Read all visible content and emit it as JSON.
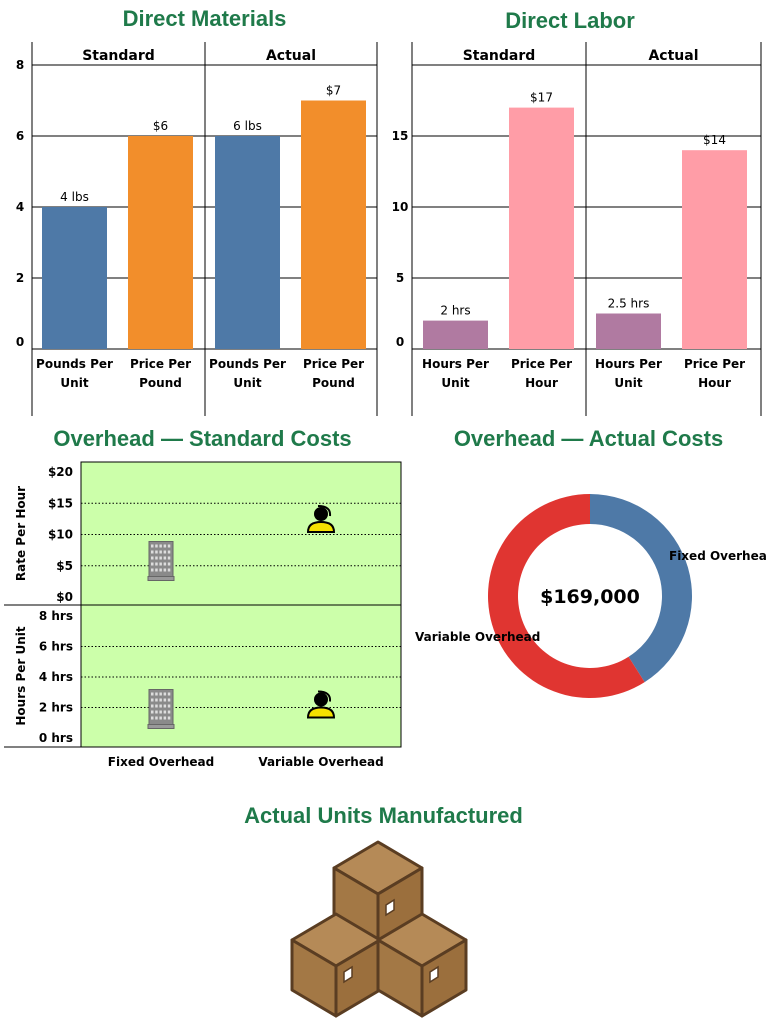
{
  "titles": {
    "direct_materials": "Direct Materials",
    "direct_labor": "Direct Labor",
    "overhead_standard": "Overhead — Standard Costs",
    "overhead_actual": "Overhead — Actual Costs",
    "units": "Actual Units Manufactured"
  },
  "chart_data": [
    {
      "type": "bar",
      "title": "Direct Materials",
      "panels": [
        "Standard",
        "Actual"
      ],
      "categories": [
        "Pounds Per Unit",
        "Price Per Pound",
        "Pounds Per Unit",
        "Price Per Pound"
      ],
      "panel_of_bar": [
        0,
        0,
        1,
        1
      ],
      "values": [
        4,
        6,
        6,
        7
      ],
      "data_labels": [
        "4 lbs",
        "$6",
        "6 lbs",
        "$7"
      ],
      "colors": [
        "#4e79a7",
        "#f28e2b",
        "#4e79a7",
        "#f28e2b"
      ],
      "yticks": [
        "0",
        "2",
        "4",
        "6",
        "8"
      ],
      "ylim": [
        0,
        8
      ],
      "grid": true
    },
    {
      "type": "bar",
      "title": "Direct Labor",
      "panels": [
        "Standard",
        "Actual"
      ],
      "categories": [
        "Hours Per Unit",
        "Price Per Hour",
        "Hours Per Unit",
        "Price Per Hour"
      ],
      "panel_of_bar": [
        0,
        0,
        1,
        1
      ],
      "values": [
        2,
        17,
        2.5,
        14
      ],
      "data_labels": [
        "2 hrs",
        "$17",
        "2.5 hrs",
        "$14"
      ],
      "colors": [
        "#b07aa1",
        "#ff9da7",
        "#b07aa1",
        "#ff9da7"
      ],
      "yticks": [
        "0",
        "5",
        "10",
        "15"
      ],
      "ylim": [
        0,
        20
      ],
      "grid": true
    },
    {
      "type": "scatter",
      "title": "Overhead — Standard Costs",
      "categories": [
        "Fixed Overhead",
        "Variable Overhead"
      ],
      "markers": [
        "building-icon",
        "worker-icon"
      ],
      "background": "#ccffaa",
      "rows": [
        {
          "ylabel": "Rate Per Hour",
          "yticks": [
            "$0",
            "$5",
            "$10",
            "$15",
            "$20"
          ],
          "ylim": [
            0,
            20
          ],
          "values": [
            6,
            12
          ]
        },
        {
          "ylabel": "Hours Per Unit",
          "yticks": [
            "0 hrs",
            "2 hrs",
            "4 hrs",
            "6 hrs",
            "8 hrs"
          ],
          "ylim": [
            0,
            8
          ],
          "values": [
            2,
            2
          ]
        }
      ]
    },
    {
      "type": "pie",
      "title": "Overhead — Actual Costs",
      "center_label": "$169,000",
      "slices": [
        {
          "name": "Fixed Overhead",
          "fraction": 0.41,
          "color": "#4e79a7"
        },
        {
          "name": "Variable Overhead",
          "fraction": 0.59,
          "color": "#e03531"
        }
      ]
    }
  ]
}
